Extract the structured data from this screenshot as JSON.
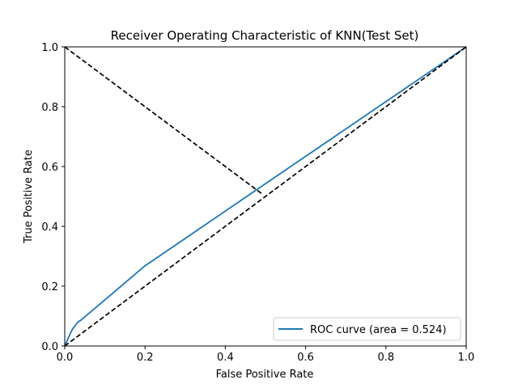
{
  "chart_data": {
    "type": "line",
    "title": "Receiver Operating Characteristic of KNN(Test Set)",
    "xlabel": "False Positive Rate",
    "ylabel": "True Positive Rate",
    "xlim": [
      0.0,
      1.0
    ],
    "ylim": [
      0.0,
      1.0
    ],
    "xticks": [
      "0.0",
      "0.2",
      "0.4",
      "0.6",
      "0.8",
      "1.0"
    ],
    "yticks": [
      "0.0",
      "0.2",
      "0.4",
      "0.6",
      "0.8",
      "1.0"
    ],
    "grid": false,
    "legend_position": "lower-right",
    "series": [
      {
        "name": "ROC curve (area = 0.524)",
        "color": "#1f77b4",
        "style": "solid",
        "x": [
          0.0,
          0.004,
          0.008,
          0.012,
          0.016,
          0.02,
          0.025,
          0.03,
          0.035,
          0.04,
          0.2,
          0.4,
          0.6,
          0.8,
          1.0
        ],
        "y": [
          0.0,
          0.012,
          0.024,
          0.036,
          0.048,
          0.058,
          0.066,
          0.076,
          0.082,
          0.086,
          0.268,
          0.451,
          0.634,
          0.817,
          1.0
        ]
      },
      {
        "color": "#000000",
        "style": "dashed",
        "x": [
          0.0,
          1.0
        ],
        "y": [
          0.0,
          1.0
        ]
      },
      {
        "color": "#000000",
        "style": "dashed",
        "x": [
          0.0,
          0.49
        ],
        "y": [
          1.0,
          0.51
        ]
      }
    ]
  }
}
